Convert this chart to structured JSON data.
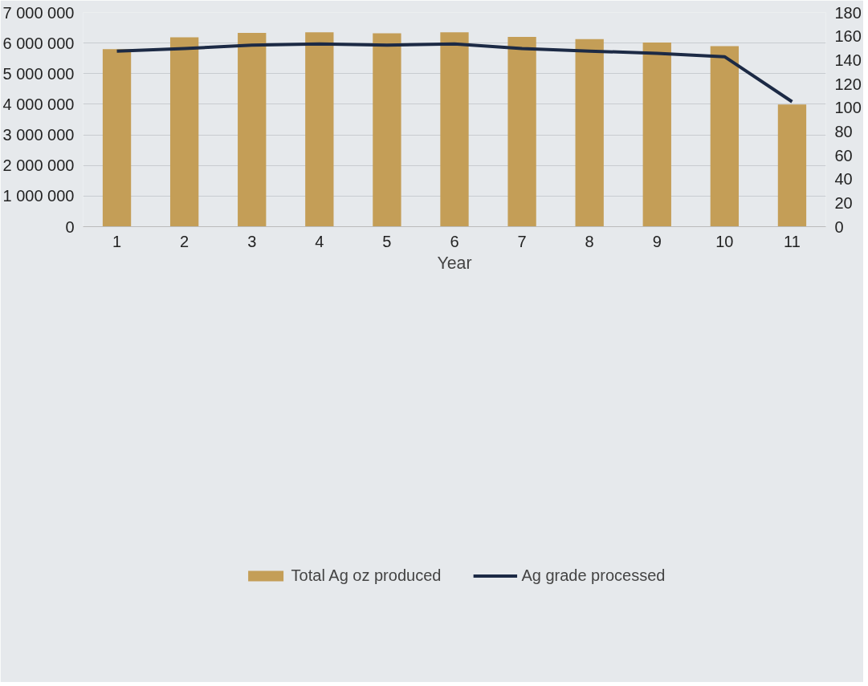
{
  "chart_data": {
    "type": "bar",
    "xlabel": "Year",
    "categories": [
      "1",
      "2",
      "3",
      "4",
      "5",
      "6",
      "7",
      "8",
      "9",
      "10",
      "11"
    ],
    "series": [
      {
        "name": "Total Ag oz produced",
        "color": "#c49e57",
        "values": [
          5800000,
          6190000,
          6330000,
          6350000,
          6320000,
          6350000,
          6200000,
          6130000,
          6020000,
          5900000,
          3990000
        ]
      },
      {
        "name": "Ag grade processed",
        "type": "line",
        "axis": "y2",
        "color": "#1c2a45",
        "values": [
          147.5,
          149.6,
          152.5,
          153.6,
          152.5,
          153.6,
          149.6,
          147.5,
          145.7,
          142.8,
          105
        ]
      }
    ],
    "ylim": [
      0,
      7000000
    ],
    "yticks": [
      {
        "value": 0,
        "label": "0"
      },
      {
        "value": 1000000,
        "label": "1 000 000"
      },
      {
        "value": 2000000,
        "label": "2 000 000"
      },
      {
        "value": 3000000,
        "label": "3 000 000"
      },
      {
        "value": 4000000,
        "label": "4 000 000"
      },
      {
        "value": 5000000,
        "label": "5 000 000"
      },
      {
        "value": 6000000,
        "label": "6 000 000"
      },
      {
        "value": 7000000,
        "label": "7 000 000"
      }
    ],
    "y2lim": [
      0,
      180
    ],
    "y2ticks": [
      0,
      20,
      40,
      60,
      80,
      100,
      120,
      140,
      160,
      180
    ],
    "grid": "y",
    "legend": "bottom",
    "line_style": "solid",
    "marker": "none"
  }
}
